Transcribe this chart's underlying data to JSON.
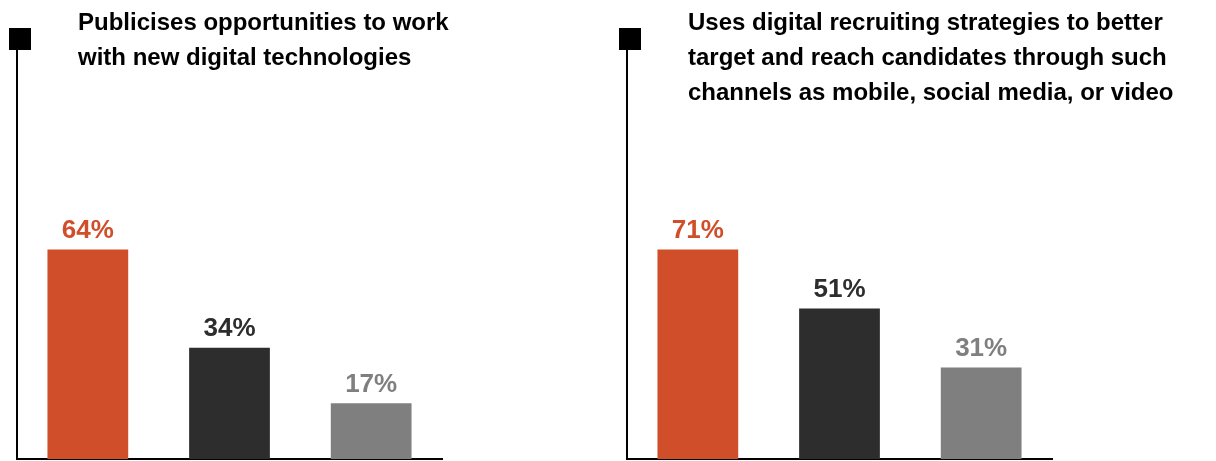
{
  "chart_data": [
    {
      "type": "bar",
      "title": "Publicises opportunities to work with new digital technologies",
      "categories": [
        null,
        null,
        null
      ],
      "values": [
        64,
        34,
        17
      ],
      "value_labels": [
        "64%",
        "34%",
        "17%"
      ],
      "colors": [
        "#d04e2a",
        "#2d2d2d",
        "#7f7f7f"
      ],
      "tick_labels": false
    },
    {
      "type": "bar",
      "title": "Uses digital recruiting strategies to better target and reach candidates through such channels as mobile, social media, or video",
      "categories": [
        null,
        null,
        null
      ],
      "values": [
        71,
        51,
        31
      ],
      "value_labels": [
        "71%",
        "51%",
        "31%"
      ],
      "colors": [
        "#d04e2a",
        "#2d2d2d",
        "#7f7f7f"
      ],
      "tick_labels": false
    }
  ]
}
